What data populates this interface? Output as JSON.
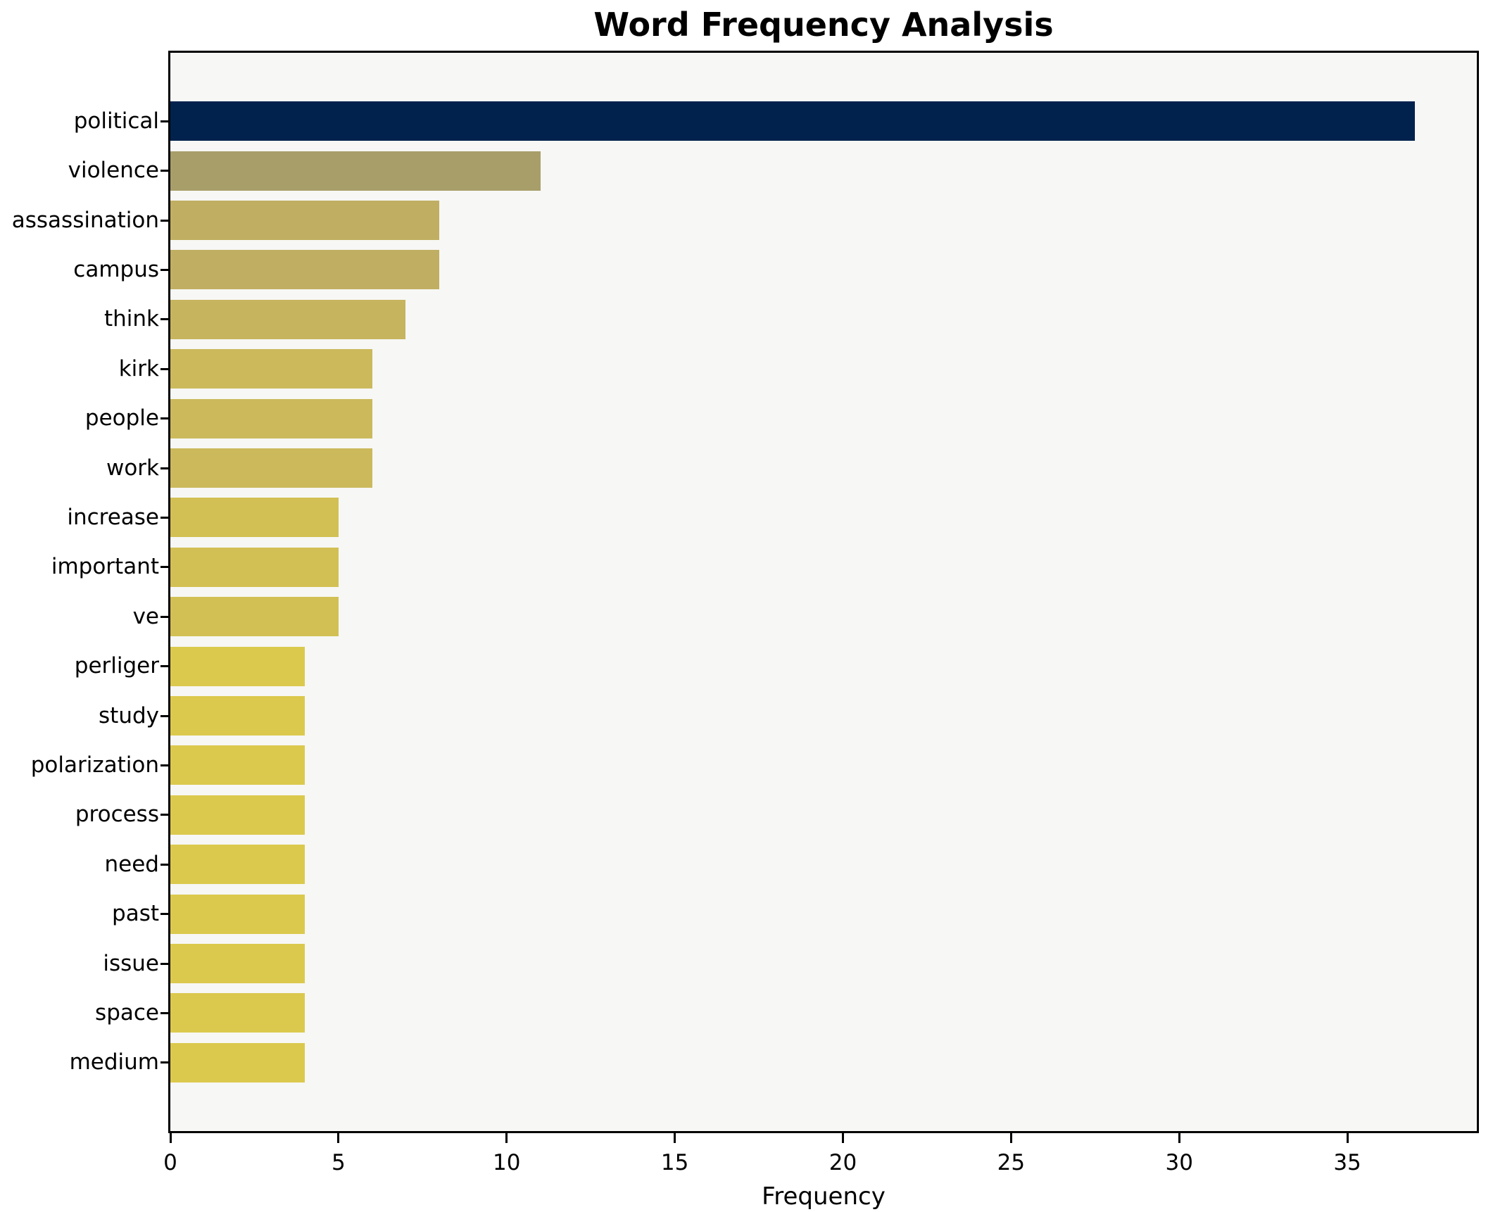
{
  "chart_data": {
    "type": "bar",
    "orientation": "horizontal",
    "title": "Word Frequency Analysis",
    "xlabel": "Frequency",
    "ylabel": "",
    "categories": [
      "political",
      "violence",
      "assassination",
      "campus",
      "think",
      "kirk",
      "people",
      "work",
      "increase",
      "important",
      "ve",
      "perliger",
      "study",
      "polarization",
      "process",
      "need",
      "past",
      "issue",
      "space",
      "medium"
    ],
    "values": [
      37,
      11,
      8,
      8,
      7,
      6,
      6,
      6,
      5,
      5,
      5,
      4,
      4,
      4,
      4,
      4,
      4,
      4,
      4,
      4
    ],
    "bar_colors": [
      "#01224d",
      "#a89e6a",
      "#c0af62",
      "#c0af62",
      "#c6b45f",
      "#cbb95c",
      "#cbb95c",
      "#cbb95c",
      "#d2c054",
      "#d2c054",
      "#d2c054",
      "#dbc94d",
      "#dbc94d",
      "#dbc94d",
      "#dbc94d",
      "#dbc94d",
      "#dbc94d",
      "#dbc94d",
      "#dbc94d",
      "#dbc94d"
    ],
    "xlim": [
      0,
      38.85
    ],
    "xticks": [
      0,
      5,
      10,
      15,
      20,
      25,
      30,
      35
    ],
    "grid": false,
    "legend": null,
    "plot_background": "#f7f7f5",
    "figure_background": "#ffffff",
    "spine_color": "#000000"
  }
}
